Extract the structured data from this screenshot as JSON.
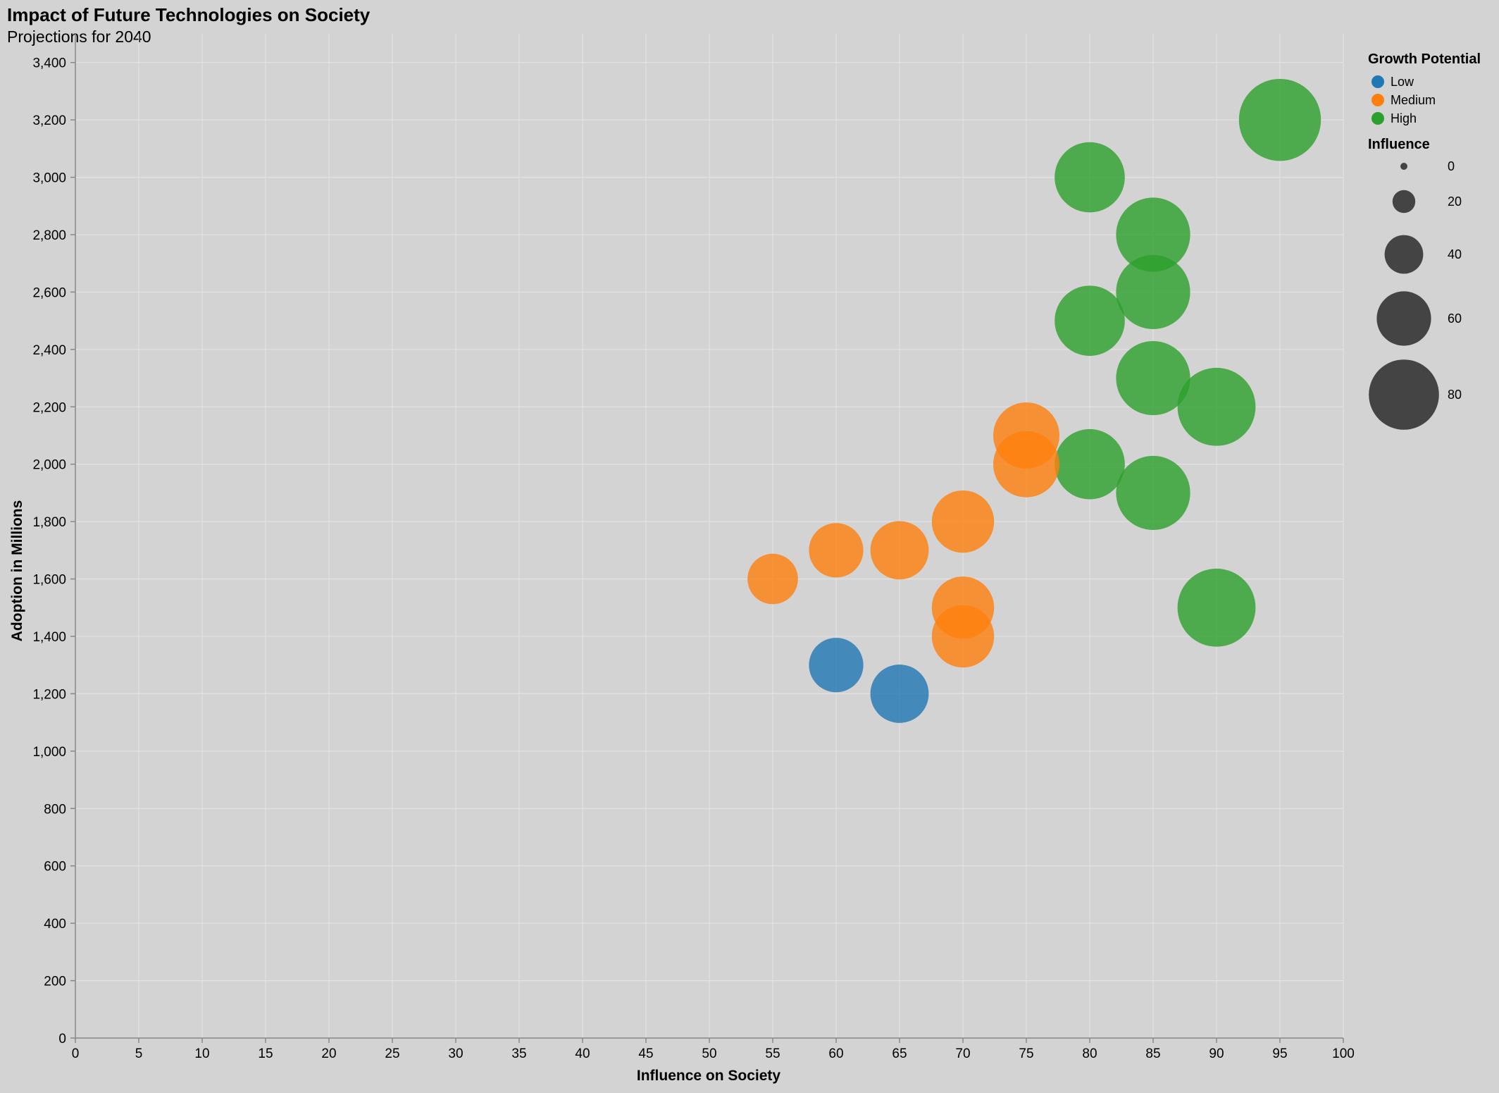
{
  "chart_data": {
    "type": "scatter",
    "title": "Impact of Future Technologies on Society",
    "subtitle": "Projections for 2040",
    "xlabel": "Influence on Society",
    "ylabel": "Adoption in Millions",
    "xlim": [
      0,
      100
    ],
    "ylim": [
      0,
      3500
    ],
    "x_ticks": [
      0,
      5,
      10,
      15,
      20,
      25,
      30,
      35,
      40,
      45,
      50,
      55,
      60,
      65,
      70,
      75,
      80,
      85,
      90,
      95,
      100
    ],
    "y_ticks": [
      0,
      200,
      400,
      600,
      800,
      1000,
      1200,
      1400,
      1600,
      1800,
      2000,
      2200,
      2400,
      2600,
      2800,
      3000,
      3200,
      3400
    ],
    "x_tick_labels": [
      "0",
      "5",
      "10",
      "15",
      "20",
      "25",
      "30",
      "35",
      "40",
      "45",
      "50",
      "55",
      "60",
      "65",
      "70",
      "75",
      "80",
      "85",
      "90",
      "95",
      "100"
    ],
    "y_tick_labels": [
      "0",
      "200",
      "400",
      "600",
      "800",
      "1,000",
      "1,200",
      "1,400",
      "1,600",
      "1,800",
      "2,000",
      "2,200",
      "2,400",
      "2,600",
      "2,800",
      "3,000",
      "3,200",
      "3,400"
    ],
    "grid": true,
    "size_encoding": "Influence",
    "color_encoding": "Growth Potential",
    "legend": {
      "placement": "top-right",
      "color_title": "Growth Potential",
      "color_entries": [
        {
          "label": "Low",
          "color": "#1f77b4"
        },
        {
          "label": "Medium",
          "color": "#ff7f0e"
        },
        {
          "label": "High",
          "color": "#2ca02c"
        }
      ],
      "size_title": "Influence",
      "size_entries": [
        {
          "label": "0",
          "value": 0
        },
        {
          "label": "20",
          "value": 20
        },
        {
          "label": "40",
          "value": 40
        },
        {
          "label": "60",
          "value": 60
        },
        {
          "label": "80",
          "value": 80
        }
      ]
    },
    "points": [
      {
        "x": 95,
        "y": 3200,
        "growth": "High"
      },
      {
        "x": 80,
        "y": 3000,
        "growth": "High"
      },
      {
        "x": 85,
        "y": 2800,
        "growth": "High"
      },
      {
        "x": 85,
        "y": 2600,
        "growth": "High"
      },
      {
        "x": 80,
        "y": 2500,
        "growth": "High"
      },
      {
        "x": 85,
        "y": 2300,
        "growth": "High"
      },
      {
        "x": 90,
        "y": 2200,
        "growth": "High"
      },
      {
        "x": 80,
        "y": 2000,
        "growth": "High"
      },
      {
        "x": 85,
        "y": 1900,
        "growth": "High"
      },
      {
        "x": 90,
        "y": 1500,
        "growth": "High"
      },
      {
        "x": 75,
        "y": 2100,
        "growth": "Medium"
      },
      {
        "x": 75,
        "y": 2000,
        "growth": "Medium"
      },
      {
        "x": 70,
        "y": 1800,
        "growth": "Medium"
      },
      {
        "x": 65,
        "y": 1700,
        "growth": "Medium"
      },
      {
        "x": 60,
        "y": 1700,
        "growth": "Medium"
      },
      {
        "x": 55,
        "y": 1600,
        "growth": "Medium"
      },
      {
        "x": 70,
        "y": 1500,
        "growth": "Medium"
      },
      {
        "x": 70,
        "y": 1400,
        "growth": "Medium"
      },
      {
        "x": 60,
        "y": 1300,
        "growth": "Low"
      },
      {
        "x": 65,
        "y": 1200,
        "growth": "Low"
      }
    ]
  }
}
